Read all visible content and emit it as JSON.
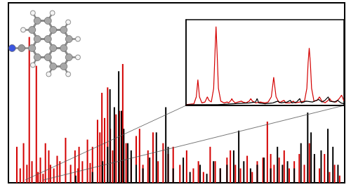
{
  "chart_data": [
    {
      "type": "bar",
      "xlim": [
        0,
        100
      ],
      "ylim": [
        0,
        100
      ],
      "grid": false,
      "tick_labels": false,
      "series": [
        {
          "color": "#d40000",
          "x": [
            2.5,
            3.5,
            4.5,
            5.5,
            6.2,
            7,
            8.3,
            8.8,
            9.5,
            10.3,
            11,
            12,
            12.5,
            13.5,
            14.5,
            15.3,
            17,
            18.5,
            19.8,
            20.7,
            21,
            22,
            23.5,
            24.3,
            25,
            26.5,
            27.2,
            27.8,
            28.6,
            29.5,
            30.3,
            31,
            32,
            33,
            34,
            35,
            36.5,
            38,
            39,
            40,
            41.5,
            43,
            44.5,
            46,
            47.5,
            49,
            51,
            53,
            55,
            56.5,
            58,
            60,
            61.5,
            63,
            65,
            66,
            67.5,
            69,
            71,
            72.5,
            74,
            75.7,
            77,
            78,
            79,
            80.5,
            82,
            83.5,
            85,
            86.5,
            88,
            89.5,
            91,
            92.5,
            94,
            95.5,
            97,
            98.5
          ],
          "values": [
            20,
            8,
            22,
            10,
            81,
            12,
            65,
            6,
            14,
            5,
            22,
            18,
            10,
            8,
            15,
            12,
            25,
            10,
            18,
            8,
            20,
            12,
            24,
            11,
            20,
            35,
            28,
            50,
            36,
            53,
            30,
            18,
            38,
            40,
            66,
            22,
            14,
            26,
            30,
            10,
            18,
            28,
            12,
            22,
            16,
            20,
            10,
            18,
            8,
            12,
            6,
            20,
            12,
            8,
            14,
            18,
            10,
            8,
            15,
            6,
            12,
            14,
            34,
            16,
            10,
            14,
            18,
            8,
            12,
            16,
            10,
            22,
            14,
            8,
            16,
            6,
            10,
            4
          ]
        },
        {
          "color": "#000000",
          "x": [
            20,
            25,
            28,
            29.5,
            30.2,
            31.5,
            32.8,
            33.6,
            34.3,
            35.5,
            36.5,
            38,
            40,
            42,
            44,
            46.8,
            47.5,
            49,
            52,
            54,
            57,
            59,
            61,
            63,
            65,
            67,
            68.5,
            70,
            72,
            74,
            76,
            78,
            80,
            81.5,
            83,
            85,
            87,
            89,
            90,
            91,
            93,
            95,
            96.5,
            98
          ],
          "values": [
            4,
            6,
            12,
            20,
            52,
            42,
            62,
            40,
            30,
            22,
            18,
            10,
            8,
            14,
            28,
            42,
            20,
            8,
            14,
            6,
            10,
            5,
            12,
            8,
            10,
            18,
            29,
            12,
            8,
            10,
            14,
            8,
            20,
            10,
            12,
            8,
            22,
            39,
            28,
            16,
            18,
            30,
            20,
            10
          ]
        }
      ]
    },
    {
      "type": "line",
      "xlim": [
        0,
        100
      ],
      "ylim": [
        0,
        100
      ],
      "grid": false,
      "tick_labels": false,
      "marker": "none",
      "series": [
        {
          "color": "#d40000",
          "x": [
            0,
            5,
            6.5,
            7.5,
            8.5,
            10,
            12,
            13.5,
            14.5,
            16,
            17.5,
            18.3,
            19,
            19.7,
            20.5,
            22,
            24,
            26,
            27,
            28.5,
            29,
            29.5,
            31,
            33,
            35,
            36,
            38,
            40,
            41,
            42,
            44,
            47,
            50,
            52,
            54,
            55,
            55.5,
            56,
            57,
            59,
            61,
            62,
            63,
            66,
            68,
            69,
            72,
            75,
            76.5,
            77.3,
            78,
            78.7,
            79.5,
            81,
            83,
            84.5,
            86,
            88,
            90,
            91,
            92,
            95,
            97,
            98.5,
            100
          ],
          "values": [
            1,
            2,
            10,
            30,
            10,
            3,
            4,
            10,
            6,
            4,
            20,
            60,
            92,
            60,
            20,
            5,
            3,
            4,
            3,
            6,
            8,
            6,
            3,
            4,
            5,
            4,
            3,
            5,
            8,
            5,
            3,
            4,
            3,
            4,
            10,
            25,
            33,
            25,
            10,
            3,
            5,
            6,
            3,
            3,
            5,
            3,
            4,
            5,
            20,
            50,
            67,
            50,
            20,
            5,
            6,
            10,
            5,
            3,
            6,
            8,
            5,
            4,
            8,
            12,
            5
          ]
        },
        {
          "color": "#000000",
          "x": [
            0,
            10,
            20,
            30,
            40,
            44,
            45,
            46,
            50,
            55,
            58,
            60,
            64,
            66,
            67,
            70,
            72,
            73,
            76,
            80,
            84,
            86,
            88,
            90,
            91,
            94,
            96,
            98,
            100
          ],
          "values": [
            1,
            1,
            1,
            2,
            3,
            4,
            8,
            3,
            2,
            3,
            5,
            3,
            4,
            6,
            3,
            4,
            8,
            3,
            5,
            4,
            7,
            4,
            6,
            10,
            5,
            4,
            6,
            3,
            2
          ]
        }
      ]
    }
  ]
}
